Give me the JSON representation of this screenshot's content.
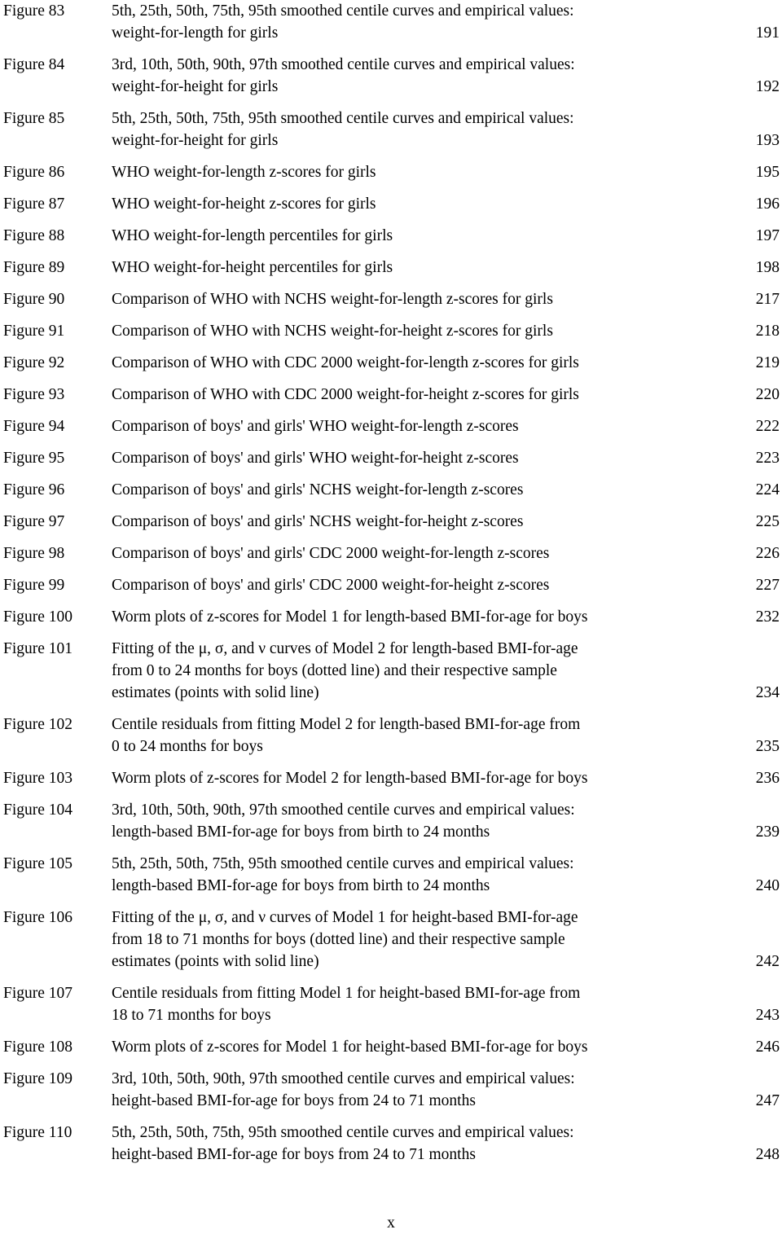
{
  "entries": [
    {
      "figure": "Figure 83",
      "lines": [
        "5th, 25th, 50th, 75th, 95th smoothed centile curves and empirical values:",
        "weight-for-length for girls"
      ],
      "page": "191"
    },
    {
      "figure": "Figure 84",
      "lines": [
        "3rd, 10th, 50th, 90th, 97th smoothed centile curves and empirical values:",
        "weight-for-height for girls"
      ],
      "page": "192"
    },
    {
      "figure": "Figure 85",
      "lines": [
        "5th, 25th, 50th, 75th, 95th smoothed centile curves and empirical values:",
        "weight-for-height for girls"
      ],
      "page": "193"
    },
    {
      "figure": "Figure 86",
      "lines": [
        "WHO weight-for-length z-scores for girls"
      ],
      "page": "195"
    },
    {
      "figure": "Figure 87",
      "lines": [
        "WHO weight-for-height z-scores for girls"
      ],
      "page": "196"
    },
    {
      "figure": "Figure 88",
      "lines": [
        "WHO weight-for-length percentiles for girls"
      ],
      "page": "197"
    },
    {
      "figure": "Figure 89",
      "lines": [
        "WHO weight-for-height percentiles for girls"
      ],
      "page": "198"
    },
    {
      "figure": "Figure 90",
      "lines": [
        "Comparison of WHO with NCHS weight-for-length z-scores for girls"
      ],
      "page": "217"
    },
    {
      "figure": "Figure 91",
      "lines": [
        "Comparison of WHO with NCHS weight-for-height z-scores for girls"
      ],
      "page": "218"
    },
    {
      "figure": "Figure 92",
      "lines": [
        "Comparison of WHO with CDC 2000 weight-for-length z-scores for girls"
      ],
      "page": "219"
    },
    {
      "figure": "Figure 93",
      "lines": [
        "Comparison of WHO with CDC 2000 weight-for-height z-scores for girls"
      ],
      "page": "220"
    },
    {
      "figure": "Figure 94",
      "lines": [
        "Comparison of boys' and girls' WHO weight-for-length z-scores"
      ],
      "page": "222"
    },
    {
      "figure": "Figure 95",
      "lines": [
        "Comparison of boys' and girls' WHO weight-for-height z-scores"
      ],
      "page": "223"
    },
    {
      "figure": "Figure 96",
      "lines": [
        "Comparison of boys' and girls' NCHS weight-for-length z-scores"
      ],
      "page": "224"
    },
    {
      "figure": "Figure 97",
      "lines": [
        "Comparison of boys' and girls' NCHS weight-for-height z-scores"
      ],
      "page": "225"
    },
    {
      "figure": "Figure 98",
      "lines": [
        "Comparison of boys' and girls' CDC 2000 weight-for-length z-scores"
      ],
      "page": "226"
    },
    {
      "figure": "Figure 99",
      "lines": [
        "Comparison of boys' and girls' CDC 2000 weight-for-height z-scores"
      ],
      "page": "227"
    },
    {
      "figure": "Figure 100",
      "lines": [
        "Worm plots of z-scores for Model 1 for length-based BMI-for-age for boys"
      ],
      "page": "232"
    },
    {
      "figure": "Figure 101",
      "lines": [
        "Fitting of the μ, σ, and ν curves of Model 2 for length-based BMI-for-age",
        "from 0 to 24 months for boys (dotted line) and their respective sample",
        "estimates (points with solid line)"
      ],
      "page": "234"
    },
    {
      "figure": "Figure 102",
      "lines": [
        "Centile residuals from fitting Model 2 for length-based  BMI-for-age from",
        "0 to 24 months for boys"
      ],
      "page": "235"
    },
    {
      "figure": "Figure 103",
      "lines": [
        "Worm plots of z-scores for Model 2 for length-based BMI-for-age for boys"
      ],
      "page": "236"
    },
    {
      "figure": "Figure 104",
      "lines": [
        "3rd, 10th, 50th, 90th, 97th smoothed centile curves and empirical values:",
        "length-based BMI-for-age for boys from birth to 24 months"
      ],
      "page": "239"
    },
    {
      "figure": "Figure 105",
      "lines": [
        "5th, 25th, 50th, 75th, 95th smoothed centile curves and empirical values:",
        "length-based BMI-for-age for boys from birth to 24 months"
      ],
      "page": "240"
    },
    {
      "figure": "Figure 106",
      "lines": [
        "Fitting of the μ, σ, and ν curves of Model 1 for height-based BMI-for-age",
        "from 18 to 71 months for boys (dotted line) and their respective sample",
        "estimates (points with solid line)"
      ],
      "page": "242"
    },
    {
      "figure": "Figure 107",
      "lines": [
        "Centile residuals from fitting Model 1 for height-based BMI-for-age  from",
        "18 to 71 months for boys"
      ],
      "page": "243"
    },
    {
      "figure": "Figure 108",
      "lines": [
        "Worm plots of z-scores for Model 1 for height-based BMI-for-age for boys"
      ],
      "page": "246"
    },
    {
      "figure": "Figure 109",
      "lines": [
        "3rd, 10th, 50th, 90th, 97th smoothed centile curves and empirical values:",
        "height-based BMI-for-age for boys from 24 to 71 months"
      ],
      "page": "247"
    },
    {
      "figure": "Figure 110",
      "lines": [
        "5th, 25th, 50th, 75th, 95th smoothed centile curves and empirical values:",
        "height-based BMI-for-age for boys from 24 to 71 months"
      ],
      "page": "248"
    }
  ],
  "footer": {
    "page_number": "x"
  }
}
